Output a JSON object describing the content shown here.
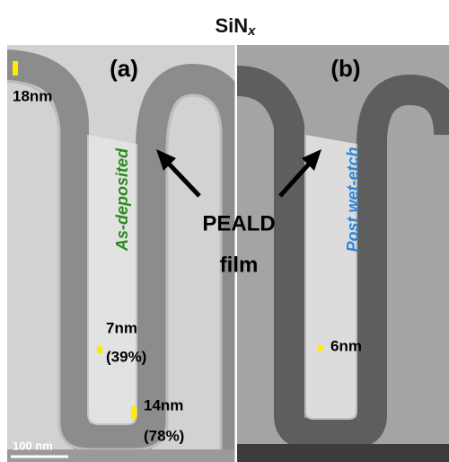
{
  "title": {
    "main": "SiN",
    "subscript": "x"
  },
  "panels": [
    {
      "label": "(a)",
      "annotation": "As-deposited",
      "measurements": [
        "18nm",
        "7nm",
        "(39%)",
        "14nm",
        "(78%)"
      ],
      "scale_bar": "100 nm"
    },
    {
      "label": "(b)",
      "annotation": "Post wet-etch",
      "measurements": [
        "6nm"
      ]
    }
  ],
  "callout": {
    "line1": "PEALD",
    "line2": "film"
  }
}
